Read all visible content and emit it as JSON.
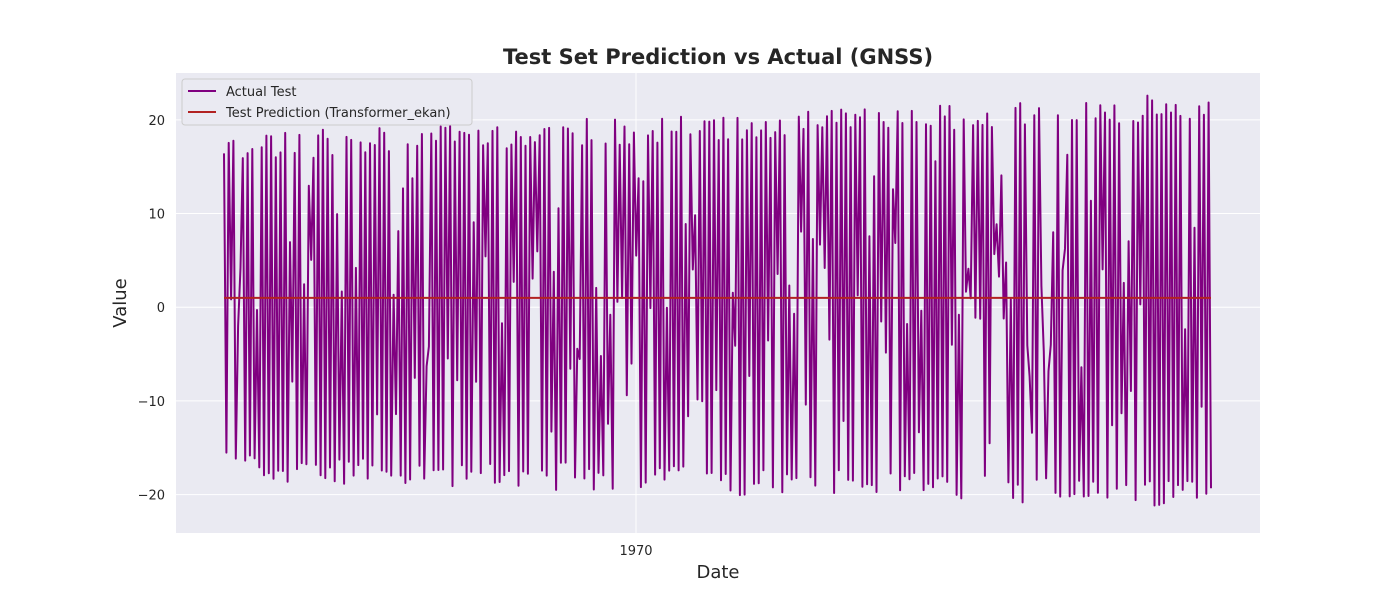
{
  "chart_data": {
    "type": "line",
    "title": "Test Set Prediction vs Actual (GNSS)",
    "xlabel": "Date",
    "ylabel": "Value",
    "ylim": [
      -24.1,
      25.0
    ],
    "yticks": [
      -20,
      -10,
      0,
      10,
      20
    ],
    "ytick_labels": [
      "−20",
      "−10",
      "0",
      "10",
      "20"
    ],
    "xtick_labels": [
      "1970"
    ],
    "grid": true,
    "legend_position": "top-left",
    "series": [
      {
        "name": "Actual Test",
        "color": "#800080",
        "style": "oscillating signal alternating between about +17 and -17, amplitude growing to about +22 / -21 toward the end",
        "num_points": 420,
        "start_low": -17,
        "start_high": 17,
        "end_low": -20,
        "end_high": 21.5,
        "min": -22.1,
        "max": 22.7
      },
      {
        "name": "Test Prediction (Transformer_ekan)",
        "color": "#b22222",
        "style": "nearly constant line",
        "value": 1.0
      }
    ]
  },
  "colors": {
    "plot_background": "#eaeaf2",
    "grid": "#ffffff"
  }
}
